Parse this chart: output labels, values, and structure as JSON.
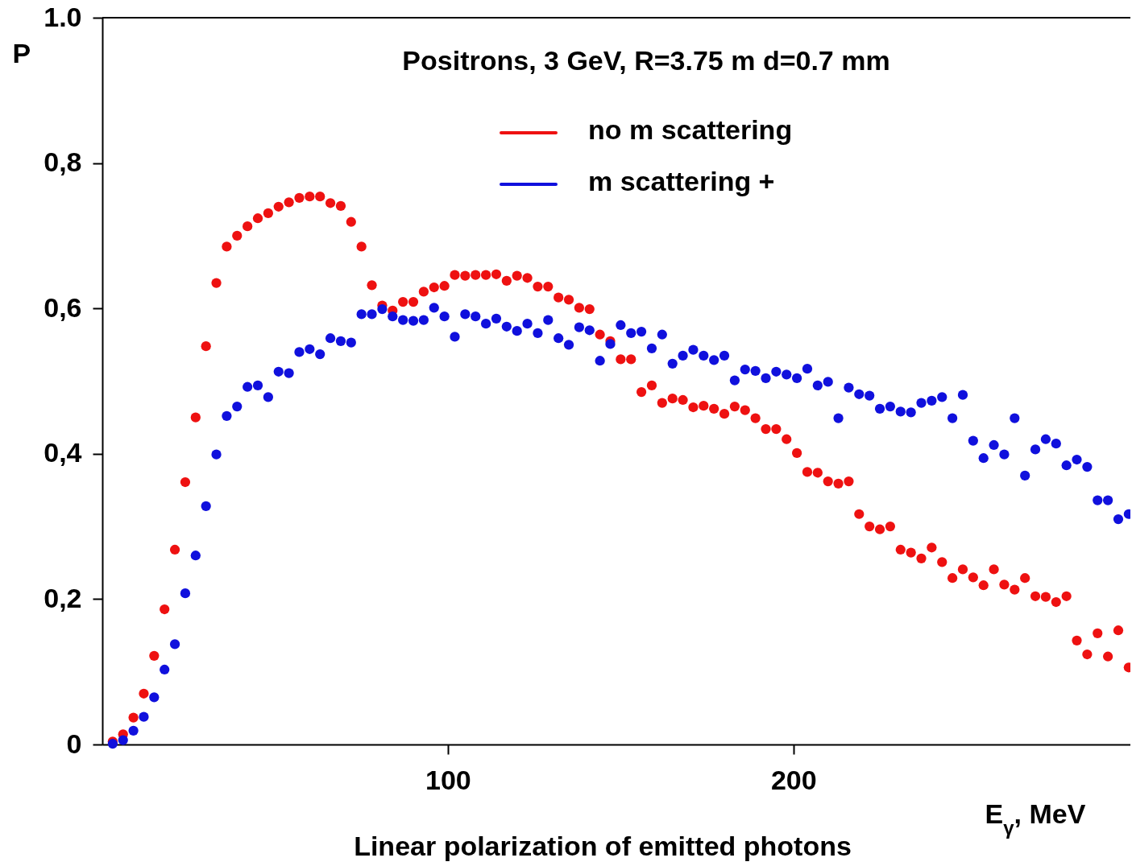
{
  "chart_data": {
    "type": "scatter",
    "title": "Positrons, 3 GeV, R=3.75 m  d=0.7 mm",
    "xlabel": "E$_{γ}$, MeV",
    "ylabel": "P",
    "annotations": [
      "Linear polarization of emitted photons"
    ],
    "x": [
      3,
      6,
      9,
      12,
      15,
      18,
      21,
      24,
      27,
      30,
      33,
      36,
      39,
      42,
      45,
      48,
      51,
      54,
      57,
      60,
      63,
      66,
      69,
      72,
      75,
      78,
      81,
      84,
      87,
      90,
      93,
      96,
      99,
      102,
      105,
      108,
      111,
      114,
      117,
      120,
      123,
      126,
      129,
      132,
      135,
      138,
      141,
      144,
      147,
      150,
      153,
      156,
      159,
      162,
      165,
      168,
      171,
      174,
      177,
      180,
      183,
      186,
      189,
      192,
      195,
      198,
      201,
      204,
      207,
      210,
      213,
      216,
      219,
      222,
      225,
      228,
      231,
      234,
      237,
      240,
      243,
      246,
      249,
      252,
      255,
      258,
      261,
      264,
      267,
      270,
      273,
      276,
      279,
      282,
      285,
      288,
      291,
      294,
      297
    ],
    "series": [
      {
        "name": "no m scattering",
        "color": "#ee1111",
        "values": [
          0.004,
          0.014,
          0.037,
          0.07,
          0.122,
          0.186,
          0.268,
          0.361,
          0.45,
          0.548,
          0.635,
          0.685,
          0.7,
          0.713,
          0.724,
          0.731,
          0.74,
          0.746,
          0.752,
          0.754,
          0.754,
          0.745,
          0.741,
          0.719,
          0.685,
          0.632,
          0.604,
          0.597,
          0.609,
          0.609,
          0.623,
          0.629,
          0.631,
          0.646,
          0.645,
          0.646,
          0.646,
          0.647,
          0.638,
          0.645,
          0.642,
          0.63,
          0.63,
          0.615,
          0.612,
          0.601,
          0.599,
          0.564,
          0.555,
          0.53,
          0.53,
          0.485,
          0.494,
          0.47,
          0.476,
          0.474,
          0.464,
          0.466,
          0.462,
          0.455,
          0.465,
          0.46,
          0.449,
          0.434,
          0.434,
          0.42,
          0.401,
          0.375,
          0.374,
          0.362,
          0.359,
          0.362,
          0.317,
          0.3,
          0.296,
          0.3,
          0.268,
          0.264,
          0.256,
          0.271,
          0.251,
          0.229,
          0.241,
          0.23,
          0.219,
          0.241,
          0.22,
          0.213,
          0.229,
          0.204,
          0.203,
          0.196,
          0.204,
          0.143,
          0.124,
          0.153,
          0.121,
          0.157,
          0.106
        ]
      },
      {
        "name": "m scattering +",
        "color": "#1010dd",
        "values": [
          0.001,
          0.006,
          0.019,
          0.038,
          0.065,
          0.103,
          0.138,
          0.208,
          0.26,
          0.328,
          0.399,
          0.452,
          0.465,
          0.492,
          0.494,
          0.478,
          0.513,
          0.511,
          0.54,
          0.544,
          0.537,
          0.559,
          0.555,
          0.553,
          0.592,
          0.592,
          0.599,
          0.589,
          0.584,
          0.583,
          0.584,
          0.601,
          0.589,
          0.561,
          0.592,
          0.589,
          0.579,
          0.586,
          0.575,
          0.569,
          0.579,
          0.566,
          0.584,
          0.559,
          0.55,
          0.574,
          0.57,
          0.528,
          0.551,
          0.577,
          0.566,
          0.568,
          0.545,
          0.564,
          0.524,
          0.535,
          0.543,
          0.535,
          0.529,
          0.535,
          0.501,
          0.516,
          0.514,
          0.504,
          0.513,
          0.509,
          0.504,
          0.517,
          0.494,
          0.499,
          0.449,
          0.491,
          0.482,
          0.48,
          0.462,
          0.465,
          0.458,
          0.457,
          0.47,
          0.473,
          0.478,
          0.449,
          0.481,
          0.418,
          0.394,
          0.412,
          0.399,
          0.449,
          0.37,
          0.406,
          0.42,
          0.414,
          0.384,
          0.392,
          0.382,
          0.336,
          0.336,
          0.31,
          0.317
        ]
      }
    ],
    "xlim": [
      0,
      297.5
    ],
    "xticks": [
      100,
      200
    ],
    "ylim": [
      0,
      1
    ],
    "yticks": [
      0,
      {
        "value": 0.2,
        "label": "0,2"
      },
      {
        "value": 0.4,
        "label": "0,4"
      },
      {
        "value": 0.6,
        "label": "0,6"
      },
      {
        "value": 0.8,
        "label": "0,8"
      },
      {
        "value": 1,
        "label": "1.0"
      }
    ],
    "legend": "top",
    "marker": "circle",
    "grid": false
  }
}
